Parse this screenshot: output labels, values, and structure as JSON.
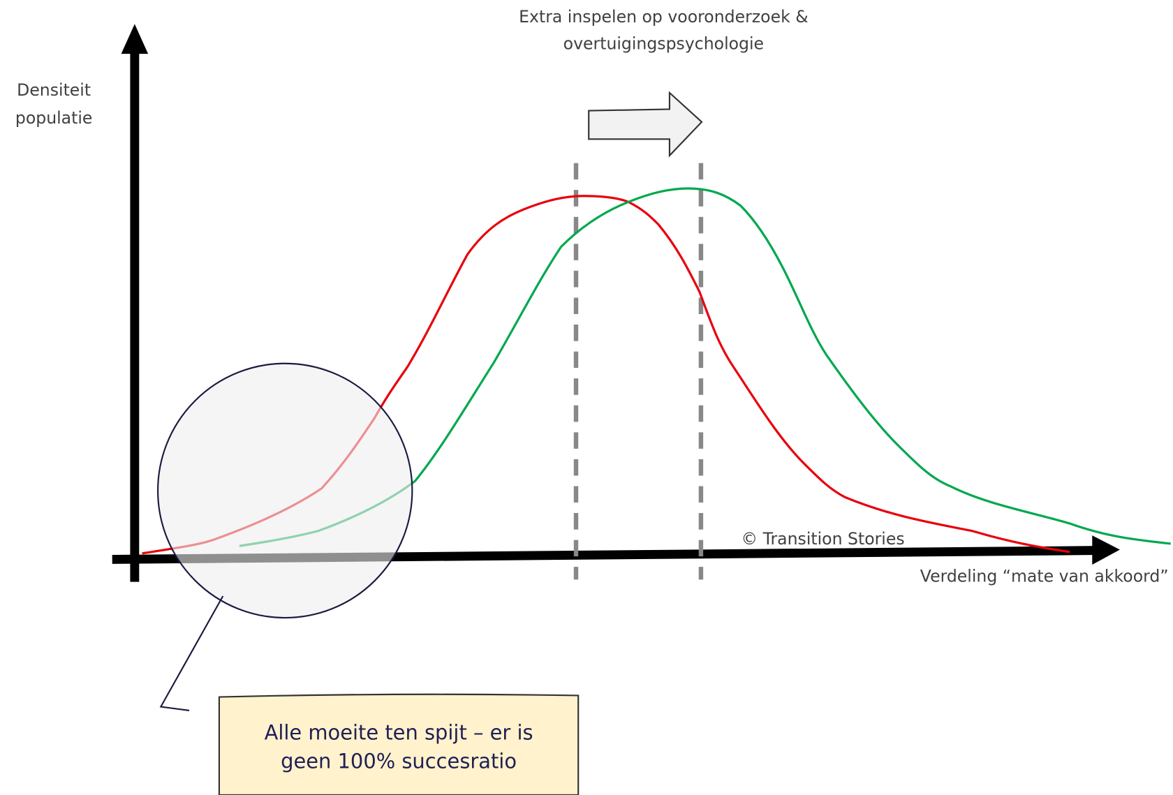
{
  "top_annotation": [
    "Extra inspelen op vooronderzoek &",
    "overtuigingspsychologie"
  ],
  "y_axis_label": [
    "Densiteit",
    "populatie"
  ],
  "x_axis_label": "Verdeling “mate van akkoord”",
  "copyright": "© Transition Stories",
  "callout": [
    "Alle moeite ten spijt – er is",
    "geen 100% succesratio"
  ]
}
